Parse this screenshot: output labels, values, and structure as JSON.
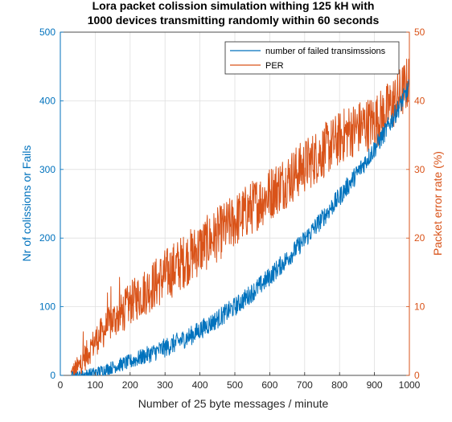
{
  "chart_data": {
    "type": "line",
    "title_line1": "Lora packet colission simulation withing 125 kH with",
    "title_line2": "1000 devices transmitting randomly within 60 seconds",
    "xlabel": "Number of 25 byte  messages / minute",
    "ylabel_left": "Nr of colissions or Fails",
    "ylabel_right": "Packet error rate (%)",
    "xlim": [
      0,
      1000
    ],
    "ylim_left": [
      0,
      500
    ],
    "ylim_right": [
      0,
      50
    ],
    "x_ticks": [
      "0",
      "100",
      "200",
      "300",
      "400",
      "500",
      "600",
      "700",
      "800",
      "900",
      "1000"
    ],
    "y_left_ticks": [
      "0",
      "100",
      "200",
      "300",
      "400",
      "500"
    ],
    "y_right_ticks": [
      "0",
      "10",
      "20",
      "30",
      "40",
      "50"
    ],
    "grid": true,
    "legend_position": "top-right",
    "colors": {
      "left_axis": "#0072BD",
      "right_axis": "#D95319",
      "grid": "#dfdfdf"
    },
    "series": [
      {
        "name": "number of failed transimssions",
        "axis": "left",
        "color": "#0072BD",
        "x": [
          30,
          50,
          75,
          100,
          125,
          150,
          175,
          200,
          225,
          250,
          275,
          300,
          325,
          350,
          375,
          400,
          425,
          450,
          475,
          500,
          525,
          550,
          575,
          600,
          625,
          650,
          675,
          700,
          725,
          750,
          775,
          800,
          825,
          850,
          875,
          900,
          925,
          950,
          975,
          1000
        ],
        "values": [
          0,
          0,
          2,
          4,
          8,
          12,
          16,
          20,
          25,
          30,
          35,
          40,
          46,
          52,
          58,
          66,
          74,
          82,
          91,
          100,
          110,
          121,
          132,
          144,
          157,
          170,
          184,
          198,
          213,
          228,
          244,
          260,
          277,
          294,
          312,
          330,
          350,
          372,
          395,
          420
        ],
        "noise_amplitude": 14
      },
      {
        "name": "PER",
        "axis": "right",
        "color": "#D95319",
        "x": [
          30,
          50,
          75,
          100,
          125,
          150,
          175,
          200,
          225,
          250,
          275,
          300,
          325,
          350,
          375,
          400,
          425,
          450,
          475,
          500,
          525,
          550,
          575,
          600,
          625,
          650,
          675,
          700,
          725,
          750,
          775,
          800,
          825,
          850,
          875,
          900,
          925,
          950,
          975,
          1000
        ],
        "values": [
          0,
          1,
          3,
          5,
          6.5,
          8,
          9,
          10.5,
          11.5,
          12.5,
          13.5,
          14.5,
          15.5,
          16.5,
          17.5,
          18.5,
          19.5,
          20.5,
          21.5,
          22.5,
          23.5,
          24.5,
          25.5,
          26.5,
          27.5,
          28.5,
          29.5,
          30.5,
          31.5,
          32.5,
          33.5,
          34.5,
          35.5,
          36,
          36.5,
          37,
          38,
          39.5,
          41,
          43
        ],
        "noise_amplitude": 4
      }
    ]
  }
}
